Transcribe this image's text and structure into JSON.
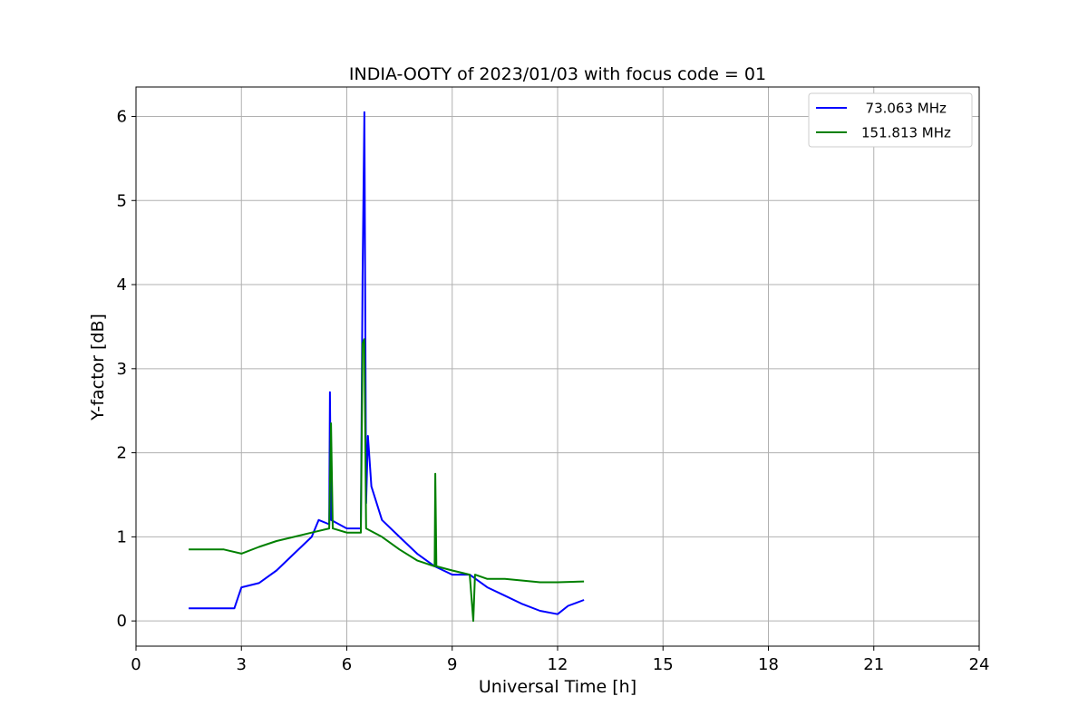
{
  "chart_data": {
    "type": "line",
    "title": "INDIA-OOTY of 2023/01/03 with focus code = 01",
    "xlabel": "Universal Time [h]",
    "ylabel": "Y-factor [dB]",
    "xlim": [
      0,
      24
    ],
    "ylim": [
      -0.3,
      6.35
    ],
    "xticks": [
      0,
      3,
      6,
      9,
      12,
      15,
      18,
      21,
      24
    ],
    "yticks": [
      0,
      1,
      2,
      3,
      4,
      5,
      6
    ],
    "grid": true,
    "legend_position": "top-right",
    "series": [
      {
        "name": "  73.063 MHz",
        "color": "#0000ff",
        "x": [
          1.5,
          2.0,
          2.5,
          2.8,
          3.0,
          3.5,
          4.0,
          4.5,
          5.0,
          5.2,
          5.5,
          5.52,
          5.55,
          6.0,
          6.4,
          6.45,
          6.5,
          6.55,
          6.6,
          6.7,
          7.0,
          7.5,
          8.0,
          8.5,
          9.0,
          9.5,
          10.0,
          10.5,
          11.0,
          11.5,
          12.0,
          12.3,
          12.75
        ],
        "y": [
          0.15,
          0.15,
          0.15,
          0.15,
          0.4,
          0.45,
          0.6,
          0.8,
          1.0,
          1.2,
          1.15,
          2.72,
          1.2,
          1.1,
          1.1,
          4.1,
          6.05,
          1.4,
          2.2,
          1.6,
          1.2,
          1.0,
          0.8,
          0.65,
          0.55,
          0.55,
          0.4,
          0.3,
          0.2,
          0.12,
          0.08,
          0.18,
          0.25
        ]
      },
      {
        "name": "151.813 MHz",
        "color": "#008000",
        "x": [
          1.5,
          2.0,
          2.5,
          3.0,
          3.5,
          4.0,
          4.5,
          5.0,
          5.5,
          5.55,
          5.6,
          6.0,
          6.4,
          6.45,
          6.5,
          6.55,
          7.0,
          7.5,
          8.0,
          8.5,
          8.52,
          8.55,
          9.0,
          9.5,
          9.6,
          9.65,
          10.0,
          10.5,
          11.0,
          11.5,
          12.0,
          12.75
        ],
        "y": [
          0.85,
          0.85,
          0.85,
          0.8,
          0.88,
          0.95,
          1.0,
          1.05,
          1.1,
          2.35,
          1.1,
          1.05,
          1.05,
          3.3,
          3.35,
          1.1,
          1.0,
          0.85,
          0.72,
          0.65,
          1.75,
          0.65,
          0.6,
          0.55,
          0.0,
          0.55,
          0.5,
          0.5,
          0.48,
          0.46,
          0.46,
          0.47
        ]
      }
    ]
  }
}
